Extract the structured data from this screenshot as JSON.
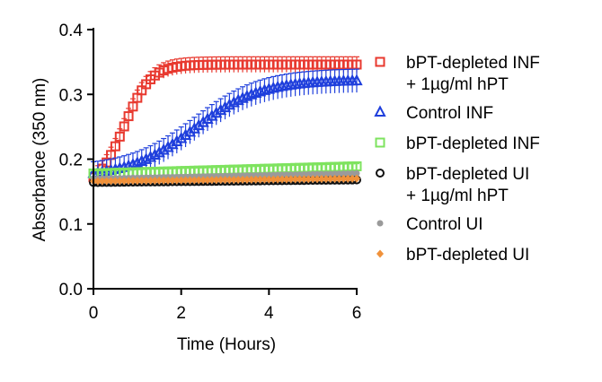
{
  "chart_data": {
    "type": "scatter",
    "title": "",
    "xlabel": "Time (Hours)",
    "ylabel": "Absorbance (350 nm)",
    "xlim": [
      0,
      6
    ],
    "ylim": [
      0,
      0.4
    ],
    "x_ticks": [
      0,
      2,
      4,
      6
    ],
    "y_ticks": [
      0.0,
      0.1,
      0.2,
      0.3,
      0.4
    ],
    "x_tick_labels": [
      "0",
      "2",
      "4",
      "6"
    ],
    "y_tick_labels": [
      "0.0",
      "0.1",
      "0.2",
      "0.3",
      "0.4"
    ],
    "grid": false,
    "legend_position": "right",
    "sampling_interval_hours": 0.1,
    "series": [
      {
        "name": "bPT-depleted INF\n+ 1µg/ml hPT",
        "marker": "square",
        "color": "#e8392f",
        "model": "sigmoid",
        "start": 0.172,
        "plateau": 0.346,
        "midpoint": 0.7,
        "steepness": 0.3,
        "error": 0.012
      },
      {
        "name": "Control INF",
        "marker": "triangle",
        "color": "#1f3fdc",
        "model": "sigmoid",
        "start": 0.178,
        "plateau": 0.322,
        "midpoint": 2.3,
        "steepness": 0.75,
        "error": 0.018
      },
      {
        "name": "bPT-depleted INF",
        "marker": "square",
        "color": "#7ee35f",
        "model": "linear",
        "start": 0.178,
        "end": 0.189,
        "error": 0.004
      },
      {
        "name": "bPT-depleted UI\n+ 1µg/ml hPT",
        "marker": "circle",
        "color": "#111111",
        "model": "linear",
        "start": 0.164,
        "end": 0.168,
        "error": 0.002
      },
      {
        "name": "Control UI",
        "marker": "dot",
        "color": "#9a9a9a",
        "model": "linear",
        "start": 0.17,
        "end": 0.178,
        "error": 0.002
      },
      {
        "name": "bPT-depleted UI",
        "marker": "diamond",
        "color": "#f0913a",
        "model": "linear",
        "start": 0.166,
        "end": 0.17,
        "error": 0.002
      }
    ]
  }
}
